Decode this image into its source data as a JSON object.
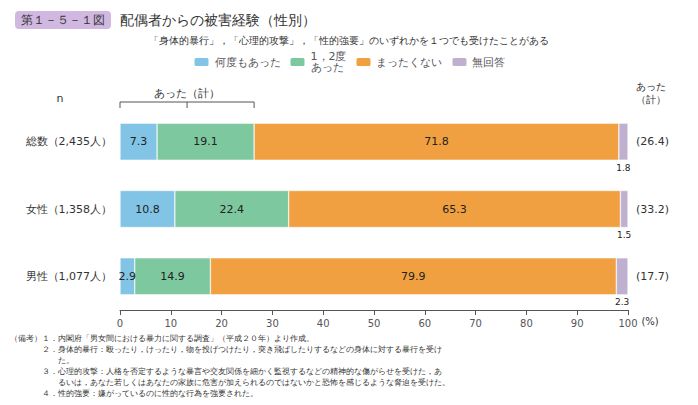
{
  "chart_data": {
    "type": "bar",
    "orientation": "horizontal",
    "stacked": true,
    "data_labels": true,
    "grid": false,
    "title_tag": "第１－５－１図",
    "title": "配偶者からの被害経験（性別）",
    "subtitle": "「身体的暴行」，「心理的攻撃」，「性的強要」のいずれかを１つでも受けたことがある",
    "categories_label": "n",
    "categories": [
      "総数（2,435人）",
      "女性（1,358人）",
      "男性（1,077人）"
    ],
    "series": [
      {
        "name": "何度もあった",
        "color": "#82c4e6",
        "values": [
          7.3,
          10.8,
          2.9
        ]
      },
      {
        "name": "1，2度\nあった",
        "color": "#7ec8a0",
        "values": [
          19.1,
          22.4,
          14.9
        ]
      },
      {
        "name": "まったくない",
        "color": "#f0a040",
        "values": [
          71.8,
          65.3,
          79.9
        ]
      },
      {
        "name": "無回答",
        "color": "#c0b0d0",
        "values": [
          1.8,
          1.5,
          2.3
        ]
      }
    ],
    "totals": {
      "name": "あった\n（計）",
      "brace_name": "あった（計）",
      "values": [
        26.4,
        33.2,
        17.7
      ],
      "value_labels": [
        "(26.4)",
        "(33.2)",
        "(17.7)"
      ]
    },
    "x_label": "(%)",
    "xlim": [
      0,
      100
    ],
    "xticks": [
      0,
      10,
      20,
      30,
      40,
      50,
      60,
      70,
      80,
      90,
      100
    ],
    "footnotes": [
      "（備考）１．内閣府「男女間における暴力に関する調査」（平成２０年）より作成。",
      "　　　　２．身体的暴行：殴ったり，けったり，物を投げつけたり，突き飛ばしたりするなどの身体に対する暴行を受け",
      "　　　　　　た。",
      "　　　　３．心理的攻撃：人格を否定するような暴言や交友関係を細かく監視するなどの精神的な傷がらせを受けた，あ",
      "　　　　　　るいは，あなた若しくはあなたの家族に危害が加えられるのではないかと恐怖を感じるような脅迫を受けた。",
      "　　　　４．性的強要：嫌がっているのに性的な行為を強要された。"
    ]
  }
}
